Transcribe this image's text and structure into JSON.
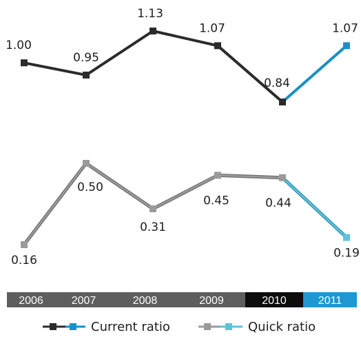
{
  "chart_data": {
    "type": "line",
    "categories": [
      "2006",
      "2007",
      "2008",
      "2009",
      "2010",
      "2011"
    ],
    "series": [
      {
        "name": "Current ratio",
        "values": [
          1.0,
          0.95,
          1.13,
          1.07,
          0.84,
          1.07
        ],
        "labels": [
          "1.00",
          "0.95",
          "1.13",
          "1.07",
          "0.84",
          "1.07"
        ],
        "color": "#2b2b2b",
        "highlight_color": "#1a8fc4"
      },
      {
        "name": "Quick ratio",
        "values": [
          0.16,
          0.5,
          0.31,
          0.45,
          0.44,
          0.19
        ],
        "labels": [
          "0.16",
          "0.50",
          "0.31",
          "0.45",
          "0.44",
          "0.19"
        ],
        "color": "#9a9a9a",
        "highlight_color": "#5fc1da"
      }
    ],
    "highlight_category": "2011",
    "axis_colors": {
      "default": "#5e5e5e",
      "2010": "#0d0d0d",
      "2011": "#1f98d2"
    },
    "grid": false,
    "legend_position": "bottom"
  }
}
